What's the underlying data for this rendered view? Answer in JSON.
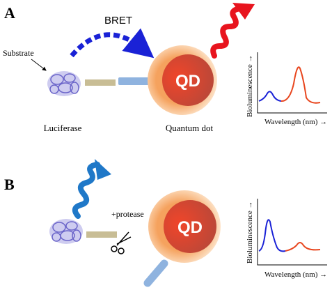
{
  "panels": [
    {
      "label": "A",
      "bret": "BRET",
      "substrate": "Substrate",
      "luciferase": "Luciferase",
      "quantum_dot": "Quantum dot",
      "qd": "QD",
      "spectrum": {
        "y_label": "Bioluminescence →",
        "x_label": "Wavelength (nm) →"
      }
    },
    {
      "label": "B",
      "protease": "+protease",
      "qd": "QD",
      "spectrum": {
        "y_label": "Bioluminescence →",
        "x_label": "Wavelength (nm) →"
      }
    }
  ]
}
